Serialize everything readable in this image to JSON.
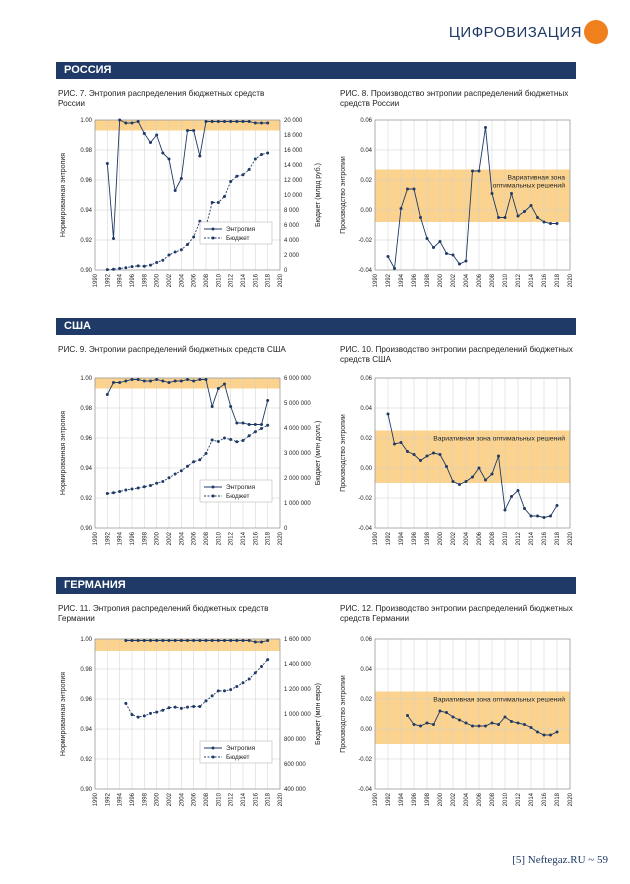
{
  "header": {
    "title": "ЦИФРОВИЗАЦИЯ",
    "accent": "#f07f1e",
    "navy": "#1f3a66"
  },
  "footer": "[5] Neftegaz.RU ~ 59",
  "sections": [
    {
      "label": "РОССИЯ"
    },
    {
      "label": "США"
    },
    {
      "label": "ГЕРМАНИЯ"
    }
  ],
  "charts": [
    {
      "fig": "РИС. 7.",
      "caption": "Энтропия распределения бюджетных средств России"
    },
    {
      "fig": "РИС. 8.",
      "caption": "Производство энтропии распределений бюджетных средств России"
    },
    {
      "fig": "РИС. 9.",
      "caption": "Энтропии распределений бюджетных средств США"
    },
    {
      "fig": "РИС. 10.",
      "caption": "Производство энтропии распределений бюджетных средств США"
    },
    {
      "fig": "РИС. 11.",
      "caption": "Энтропия распределений бюджетных средств Германии"
    },
    {
      "fig": "РИС. 12.",
      "caption": "Производство энтропии распределений бюджетных средств Германии"
    }
  ],
  "chart_data": [
    {
      "type": "line",
      "xlim": [
        1990,
        2020
      ],
      "xticks": [
        1990,
        1992,
        1994,
        1996,
        1998,
        2000,
        2002,
        2004,
        2006,
        2008,
        2010,
        2012,
        2014,
        2016,
        2018,
        2020
      ],
      "ylim": [
        0.9,
        1.0
      ],
      "yticks": [
        "0.90",
        "0.92",
        "0.94",
        "0.96",
        "0.98",
        "1.00"
      ],
      "ylabel": "Нормированная энтропия",
      "y2lim": [
        0,
        20000
      ],
      "y2ticks": [
        "0",
        "2 000",
        "4 000",
        "6 000",
        "8 000",
        "10 000",
        "12 000",
        "14 000",
        "16 000",
        "18 000",
        "20 000"
      ],
      "y2label": "Бюджет (млрд руб.)",
      "highlight": [
        0.993,
        1.0
      ],
      "legend": [
        "Энтропия",
        "Бюджет"
      ],
      "series": [
        {
          "name": "Энтропия",
          "axis": "left",
          "x": [
            1992,
            1993,
            1994,
            1995,
            1996,
            1997,
            1998,
            1999,
            2000,
            2001,
            2002,
            2003,
            2004,
            2005,
            2006,
            2007,
            2008,
            2009,
            2010,
            2011,
            2012,
            2013,
            2014,
            2015,
            2016,
            2017,
            2018
          ],
          "y": [
            0.971,
            0.921,
            1.0,
            0.998,
            0.998,
            0.999,
            0.991,
            0.985,
            0.99,
            0.978,
            0.974,
            0.953,
            0.961,
            0.993,
            0.993,
            0.976,
            0.999,
            0.999,
            0.999,
            0.999,
            0.999,
            0.999,
            0.999,
            0.999,
            0.998,
            0.998,
            0.998
          ]
        },
        {
          "name": "Бюджет",
          "axis": "right",
          "x": [
            1992,
            1993,
            1994,
            1995,
            1996,
            1997,
            1998,
            1999,
            2000,
            2001,
            2002,
            2003,
            2004,
            2005,
            2006,
            2007,
            2008,
            2009,
            2010,
            2011,
            2012,
            2013,
            2014,
            2015,
            2016,
            2017,
            2018
          ],
          "y": [
            50,
            100,
            200,
            300,
            450,
            550,
            500,
            650,
            1000,
            1300,
            2000,
            2400,
            2700,
            3400,
            4400,
            6500,
            5800,
            9000,
            9000,
            9800,
            11800,
            12500,
            12700,
            13400,
            14800,
            15400,
            15600
          ]
        }
      ]
    },
    {
      "type": "line",
      "xlim": [
        1990,
        2020
      ],
      "xticks": [
        1990,
        1992,
        1994,
        1996,
        1998,
        2000,
        2002,
        2004,
        2006,
        2008,
        2010,
        2012,
        2014,
        2016,
        2018,
        2020
      ],
      "ylim": [
        -0.04,
        0.06
      ],
      "yticks": [
        "-0.04",
        "-0.02",
        "0.00",
        "0.02",
        "0.04",
        "0.06"
      ],
      "ylabel": "Производство энтропии",
      "highlight": [
        -0.008,
        0.027
      ],
      "band_label": "Вариативная зона оптимальных решений",
      "series": [
        {
          "x": [
            1992,
            1993,
            1994,
            1995,
            1996,
            1997,
            1998,
            1999,
            2000,
            2001,
            2002,
            2003,
            2004,
            2005,
            2006,
            2007,
            2008,
            2009,
            2010,
            2011,
            2012,
            2013,
            2014,
            2015,
            2016,
            2017,
            2018
          ],
          "y": [
            -0.031,
            -0.039,
            0.001,
            0.014,
            0.014,
            -0.005,
            -0.019,
            -0.025,
            -0.021,
            -0.029,
            -0.03,
            -0.036,
            -0.034,
            0.026,
            0.026,
            0.055,
            0.011,
            -0.005,
            -0.005,
            0.011,
            -0.004,
            -0.001,
            0.003,
            -0.005,
            -0.008,
            -0.009,
            -0.009
          ]
        }
      ]
    },
    {
      "type": "line",
      "xlim": [
        1990,
        2020
      ],
      "xticks": [
        1990,
        1992,
        1994,
        1996,
        1998,
        2000,
        2002,
        2004,
        2006,
        2008,
        2010,
        2012,
        2014,
        2016,
        2018,
        2020
      ],
      "ylim": [
        0.9,
        1.0
      ],
      "yticks": [
        "0.90",
        "0.92",
        "0.94",
        "0.96",
        "0.98",
        "1.00"
      ],
      "ylabel": "Нормированная энтропия",
      "y2lim": [
        0,
        6000000
      ],
      "y2ticks": [
        "0",
        "1 000 000",
        "2 000 000",
        "3 000 000",
        "4 000 000",
        "5 000 000",
        "6 000 000"
      ],
      "y2label": "Бюджет (млн долл.)",
      "highlight": [
        0.993,
        1.0
      ],
      "legend": [
        "Энтропия",
        "Бюджет"
      ],
      "series": [
        {
          "name": "Энтропия",
          "axis": "left",
          "x": [
            1992,
            1993,
            1994,
            1995,
            1996,
            1997,
            1998,
            1999,
            2000,
            2001,
            2002,
            2003,
            2004,
            2005,
            2006,
            2007,
            2008,
            2009,
            2010,
            2011,
            2012,
            2013,
            2014,
            2015,
            2016,
            2017,
            2018
          ],
          "y": [
            0.989,
            0.997,
            0.997,
            0.998,
            0.999,
            0.999,
            0.998,
            0.998,
            0.999,
            0.998,
            0.997,
            0.998,
            0.998,
            0.999,
            0.998,
            0.999,
            0.999,
            0.981,
            0.993,
            0.996,
            0.981,
            0.97,
            0.97,
            0.969,
            0.969,
            0.969,
            0.985
          ]
        },
        {
          "name": "Бюджет",
          "axis": "right",
          "x": [
            1992,
            1993,
            1994,
            1995,
            1996,
            1997,
            1998,
            1999,
            2000,
            2001,
            2002,
            2003,
            2004,
            2005,
            2006,
            2007,
            2008,
            2009,
            2010,
            2011,
            2012,
            2013,
            2014,
            2015,
            2016,
            2017,
            2018
          ],
          "y": [
            1380000,
            1410000,
            1460000,
            1520000,
            1560000,
            1600000,
            1650000,
            1700000,
            1790000,
            1860000,
            2010000,
            2160000,
            2290000,
            2470000,
            2650000,
            2730000,
            2980000,
            3520000,
            3460000,
            3600000,
            3540000,
            3450000,
            3500000,
            3690000,
            3850000,
            3980000,
            4110000
          ]
        }
      ]
    },
    {
      "type": "line",
      "xlim": [
        1990,
        2020
      ],
      "xticks": [
        1990,
        1992,
        1994,
        1996,
        1998,
        2000,
        2002,
        2004,
        2006,
        2008,
        2010,
        2012,
        2014,
        2016,
        2018,
        2020
      ],
      "ylim": [
        -0.04,
        0.06
      ],
      "yticks": [
        "-0.04",
        "-0.02",
        "0.00",
        "0.02",
        "0.04",
        "0.06"
      ],
      "ylabel": "Производство энтропии",
      "highlight": [
        -0.01,
        0.025
      ],
      "band_label": "Вариативная зона оптимальных решений",
      "series": [
        {
          "x": [
            1992,
            1993,
            1994,
            1995,
            1996,
            1997,
            1998,
            1999,
            2000,
            2001,
            2002,
            2003,
            2004,
            2005,
            2006,
            2007,
            2008,
            2009,
            2010,
            2011,
            2012,
            2013,
            2014,
            2015,
            2016,
            2017,
            2018
          ],
          "y": [
            0.036,
            0.016,
            0.017,
            0.011,
            0.009,
            0.005,
            0.008,
            0.01,
            0.009,
            0.001,
            -0.009,
            -0.011,
            -0.009,
            -0.006,
            0.0,
            -0.008,
            -0.004,
            0.008,
            -0.028,
            -0.019,
            -0.015,
            -0.027,
            -0.032,
            -0.032,
            -0.033,
            -0.032,
            -0.025
          ]
        }
      ]
    },
    {
      "type": "line",
      "xlim": [
        1990,
        2020
      ],
      "xticks": [
        1990,
        1992,
        1994,
        1996,
        1998,
        2000,
        2002,
        2004,
        2006,
        2008,
        2010,
        2012,
        2014,
        2016,
        2018,
        2020
      ],
      "ylim": [
        0.9,
        1.0
      ],
      "yticks": [
        "0.90",
        "0.92",
        "0.94",
        "0.96",
        "0.98",
        "1.00"
      ],
      "ylabel": "Нормированная энтропия",
      "y2lim": [
        400000,
        1600000
      ],
      "y2ticks": [
        "400 000",
        "600 000",
        "800 000",
        "1 000 000",
        "1 200 000",
        "1 400 000",
        "1 600 000"
      ],
      "y2label": "Бюджет (млн евро)",
      "highlight": [
        0.992,
        1.0
      ],
      "legend": [
        "Энтропия",
        "Бюджет"
      ],
      "series": [
        {
          "name": "Энтропия",
          "axis": "left",
          "x": [
            1995,
            1996,
            1997,
            1998,
            1999,
            2000,
            2001,
            2002,
            2003,
            2004,
            2005,
            2006,
            2007,
            2008,
            2009,
            2010,
            2011,
            2012,
            2013,
            2014,
            2015,
            2016,
            2017,
            2018
          ],
          "y": [
            0.999,
            0.999,
            0.999,
            0.999,
            0.999,
            0.999,
            0.999,
            0.999,
            0.999,
            0.999,
            0.999,
            0.999,
            0.999,
            0.999,
            0.999,
            0.999,
            0.999,
            0.999,
            0.999,
            0.999,
            0.999,
            0.998,
            0.998,
            0.999
          ]
        },
        {
          "name": "Бюджет",
          "axis": "right",
          "x": [
            1995,
            1996,
            1997,
            1998,
            1999,
            2000,
            2001,
            2002,
            2003,
            2004,
            2005,
            2006,
            2007,
            2008,
            2009,
            2010,
            2011,
            2012,
            2013,
            2014,
            2015,
            2016,
            2017,
            2018
          ],
          "y": [
            1085000,
            995000,
            975000,
            985000,
            1005000,
            1015000,
            1030000,
            1050000,
            1055000,
            1045000,
            1055000,
            1060000,
            1060000,
            1105000,
            1145000,
            1185000,
            1185000,
            1195000,
            1220000,
            1250000,
            1280000,
            1330000,
            1380000,
            1435000
          ]
        }
      ]
    },
    {
      "type": "line",
      "xlim": [
        1990,
        2020
      ],
      "xticks": [
        1990,
        1992,
        1994,
        1996,
        1998,
        2000,
        2002,
        2004,
        2006,
        2008,
        2010,
        2012,
        2014,
        2016,
        2018,
        2020
      ],
      "ylim": [
        -0.04,
        0.06
      ],
      "yticks": [
        "-0.04",
        "-0.02",
        "0.00",
        "0.02",
        "0.04",
        "0.06"
      ],
      "ylabel": "Производство энтропии",
      "highlight": [
        -0.01,
        0.025
      ],
      "band_label": "Вариативная зона оптимальных решений",
      "series": [
        {
          "x": [
            1995,
            1996,
            1997,
            1998,
            1999,
            2000,
            2001,
            2002,
            2003,
            2004,
            2005,
            2006,
            2007,
            2008,
            2009,
            2010,
            2011,
            2012,
            2013,
            2014,
            2015,
            2016,
            2017,
            2018
          ],
          "y": [
            0.009,
            0.003,
            0.002,
            0.004,
            0.003,
            0.012,
            0.011,
            0.008,
            0.006,
            0.004,
            0.002,
            0.002,
            0.002,
            0.004,
            0.003,
            0.008,
            0.005,
            0.004,
            0.003,
            0.001,
            -0.002,
            -0.004,
            -0.004,
            -0.002
          ]
        }
      ]
    }
  ]
}
